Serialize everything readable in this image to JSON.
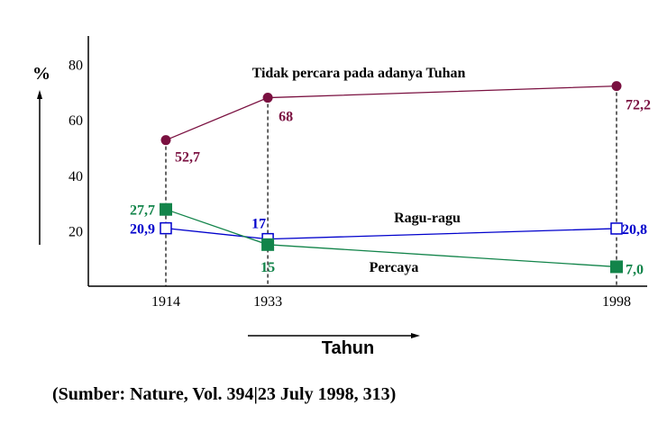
{
  "chart_data": {
    "type": "line",
    "ylabel": "%",
    "xlabel": "Tahun",
    "ylim": [
      0,
      85
    ],
    "y_ticks": [
      20,
      40,
      60,
      80
    ],
    "x": [
      1914,
      1933,
      1998
    ],
    "x_tick_labels": [
      "1914",
      "1933",
      "1998"
    ],
    "grid": false,
    "series": [
      {
        "name": "Tidak percara pada adanya Tuhan",
        "color": "#7a1040",
        "marker": "circle",
        "values": [
          52.7,
          68,
          72.2
        ],
        "value_labels": [
          "52,7",
          "68",
          "72,2"
        ]
      },
      {
        "name": "Ragu-ragu",
        "color": "#0000cc",
        "marker": "open-square",
        "values": [
          20.9,
          17,
          20.8
        ],
        "value_labels": [
          "20,9",
          "17",
          "20,8"
        ]
      },
      {
        "name": "Percaya",
        "color": "#12844a",
        "marker": "filled-square",
        "values": [
          27.7,
          15,
          7.0
        ],
        "value_labels": [
          "27,7",
          "15",
          "7,0"
        ]
      }
    ]
  },
  "source": "(Sumber: Nature, Vol. 394|23 July 1998, 313)"
}
